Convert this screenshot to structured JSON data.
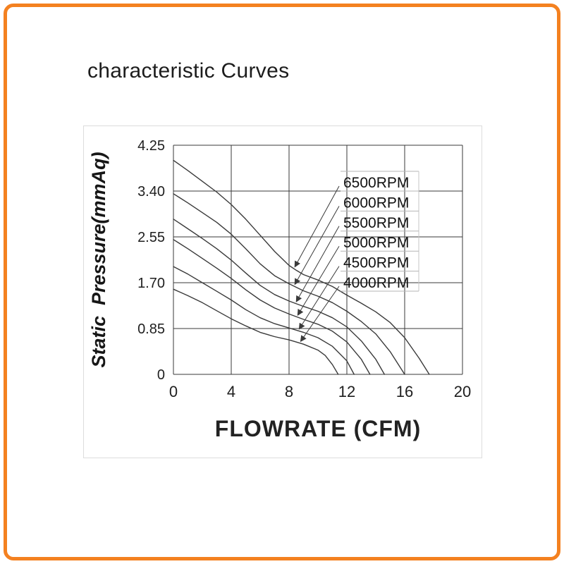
{
  "page": {
    "title": "characteristic Curves",
    "frame_color": "#F48120",
    "background": "#ffffff"
  },
  "chart_data": {
    "type": "line",
    "title": "characteristic Curves",
    "xlabel": "FLOWRATE (CFM)",
    "ylabel": "Static  Pressure(mmAq)",
    "xlim": [
      0,
      20
    ],
    "ylim": [
      0,
      4.25
    ],
    "xticks": [
      "0",
      "4",
      "8",
      "12",
      "16",
      "20"
    ],
    "xtick_values": [
      0,
      4,
      8,
      12,
      16,
      20
    ],
    "yticks": [
      "0",
      "0.85",
      "1.70",
      "2.55",
      "3.40",
      "4.25"
    ],
    "ytick_values": [
      0,
      0.85,
      1.7,
      2.55,
      3.4,
      4.25
    ],
    "grid": true,
    "legend_position": "inside-top-right",
    "axis_color": "#3a3a3a",
    "curve_color": "#3a3a3a",
    "series": [
      {
        "name": "6500RPM",
        "arrow_x": 8.3,
        "points": [
          [
            0,
            3.97
          ],
          [
            1,
            3.78
          ],
          [
            2,
            3.58
          ],
          [
            3,
            3.38
          ],
          [
            4,
            3.15
          ],
          [
            5,
            2.88
          ],
          [
            6,
            2.58
          ],
          [
            7,
            2.28
          ],
          [
            8,
            2.02
          ],
          [
            8.5,
            1.93
          ],
          [
            9,
            1.85
          ],
          [
            10,
            1.75
          ],
          [
            11,
            1.63
          ],
          [
            12,
            1.47
          ],
          [
            13,
            1.32
          ],
          [
            14,
            1.16
          ],
          [
            15,
            0.96
          ],
          [
            16,
            0.68
          ],
          [
            17,
            0.3
          ],
          [
            17.7,
            0
          ]
        ]
      },
      {
        "name": "6000RPM",
        "arrow_x": 8.3,
        "points": [
          [
            0,
            3.35
          ],
          [
            1,
            3.18
          ],
          [
            2,
            3.0
          ],
          [
            3,
            2.82
          ],
          [
            4,
            2.6
          ],
          [
            5,
            2.33
          ],
          [
            6,
            2.05
          ],
          [
            7,
            1.83
          ],
          [
            8,
            1.68
          ],
          [
            9,
            1.55
          ],
          [
            10,
            1.45
          ],
          [
            11,
            1.33
          ],
          [
            12,
            1.17
          ],
          [
            13,
            0.98
          ],
          [
            14,
            0.75
          ],
          [
            15,
            0.42
          ],
          [
            16,
            0
          ]
        ]
      },
      {
        "name": "5500RPM",
        "arrow_x": 8.4,
        "points": [
          [
            0,
            2.88
          ],
          [
            1,
            2.7
          ],
          [
            2,
            2.52
          ],
          [
            3,
            2.33
          ],
          [
            4,
            2.12
          ],
          [
            5,
            1.88
          ],
          [
            6,
            1.65
          ],
          [
            7,
            1.48
          ],
          [
            8,
            1.36
          ],
          [
            9,
            1.26
          ],
          [
            10,
            1.17
          ],
          [
            11,
            1.05
          ],
          [
            12,
            0.88
          ],
          [
            13,
            0.62
          ],
          [
            14,
            0.28
          ],
          [
            14.6,
            0
          ]
        ]
      },
      {
        "name": "5000RPM",
        "arrow_x": 8.5,
        "points": [
          [
            0,
            2.5
          ],
          [
            1,
            2.33
          ],
          [
            2,
            2.15
          ],
          [
            3,
            1.97
          ],
          [
            4,
            1.78
          ],
          [
            5,
            1.57
          ],
          [
            6,
            1.38
          ],
          [
            7,
            1.23
          ],
          [
            8,
            1.12
          ],
          [
            9,
            1.02
          ],
          [
            10,
            0.93
          ],
          [
            11,
            0.8
          ],
          [
            12,
            0.6
          ],
          [
            13,
            0.28
          ],
          [
            13.6,
            0
          ]
        ]
      },
      {
        "name": "4500RPM",
        "arrow_x": 8.6,
        "points": [
          [
            0,
            2.0
          ],
          [
            1,
            1.86
          ],
          [
            2,
            1.7
          ],
          [
            3,
            1.54
          ],
          [
            4,
            1.38
          ],
          [
            5,
            1.2
          ],
          [
            6,
            1.05
          ],
          [
            7,
            0.94
          ],
          [
            8,
            0.86
          ],
          [
            9,
            0.78
          ],
          [
            10,
            0.68
          ],
          [
            11,
            0.52
          ],
          [
            12,
            0.25
          ],
          [
            12.5,
            0
          ]
        ]
      },
      {
        "name": "4000RPM",
        "arrow_x": 8.7,
        "points": [
          [
            0,
            1.58
          ],
          [
            1,
            1.46
          ],
          [
            2,
            1.33
          ],
          [
            3,
            1.18
          ],
          [
            4,
            1.03
          ],
          [
            5,
            0.9
          ],
          [
            6,
            0.78
          ],
          [
            7,
            0.7
          ],
          [
            8,
            0.64
          ],
          [
            9,
            0.56
          ],
          [
            10,
            0.45
          ],
          [
            10.5,
            0.35
          ],
          [
            11,
            0.18
          ],
          [
            11.4,
            0
          ]
        ]
      }
    ]
  }
}
